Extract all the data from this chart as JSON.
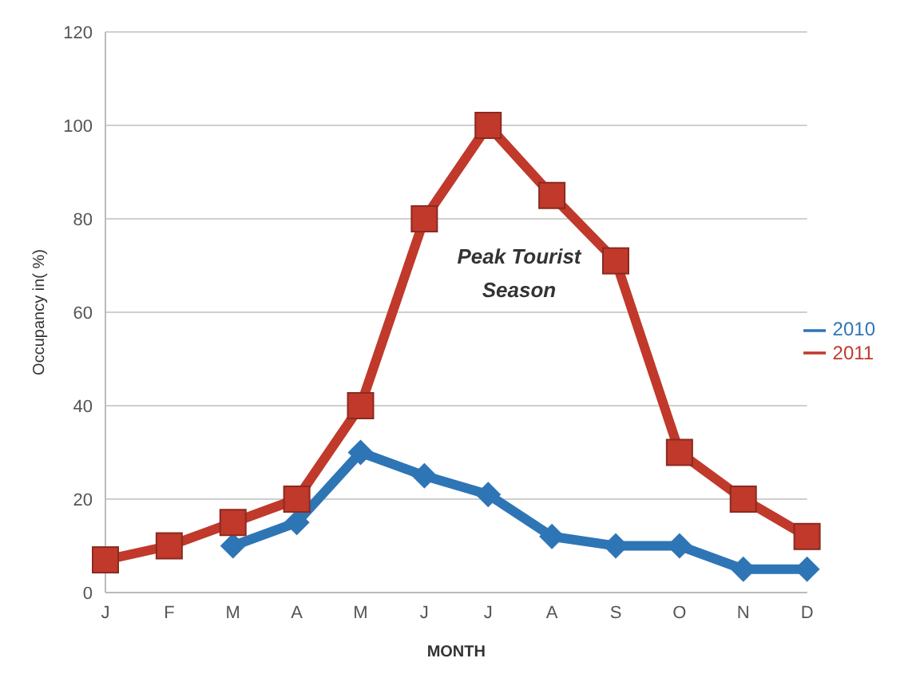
{
  "chart_data": {
    "type": "line",
    "xlabel": "MONTH",
    "ylabel": "Occupancy in( %)",
    "categories": [
      "J",
      "F",
      "M",
      "A",
      "M",
      "J",
      "J",
      "A",
      "S",
      "O",
      "N",
      "D"
    ],
    "series": [
      {
        "name": "2010",
        "color": "#2e75b6",
        "marker": "diamond",
        "values": [
          null,
          null,
          10,
          15,
          30,
          25,
          21,
          12,
          10,
          10,
          5,
          5
        ]
      },
      {
        "name": "2011",
        "color": "#c0392b",
        "marker": "square",
        "values": [
          7,
          10,
          15,
          20,
          40,
          80,
          100,
          85,
          71,
          30,
          20,
          12
        ]
      }
    ],
    "ylim": [
      0,
      120
    ],
    "yticks": [
      0,
      20,
      40,
      60,
      80,
      100,
      120
    ],
    "grid": "y",
    "legend": "right",
    "annotations": [
      "Peak Tourist Season"
    ]
  }
}
